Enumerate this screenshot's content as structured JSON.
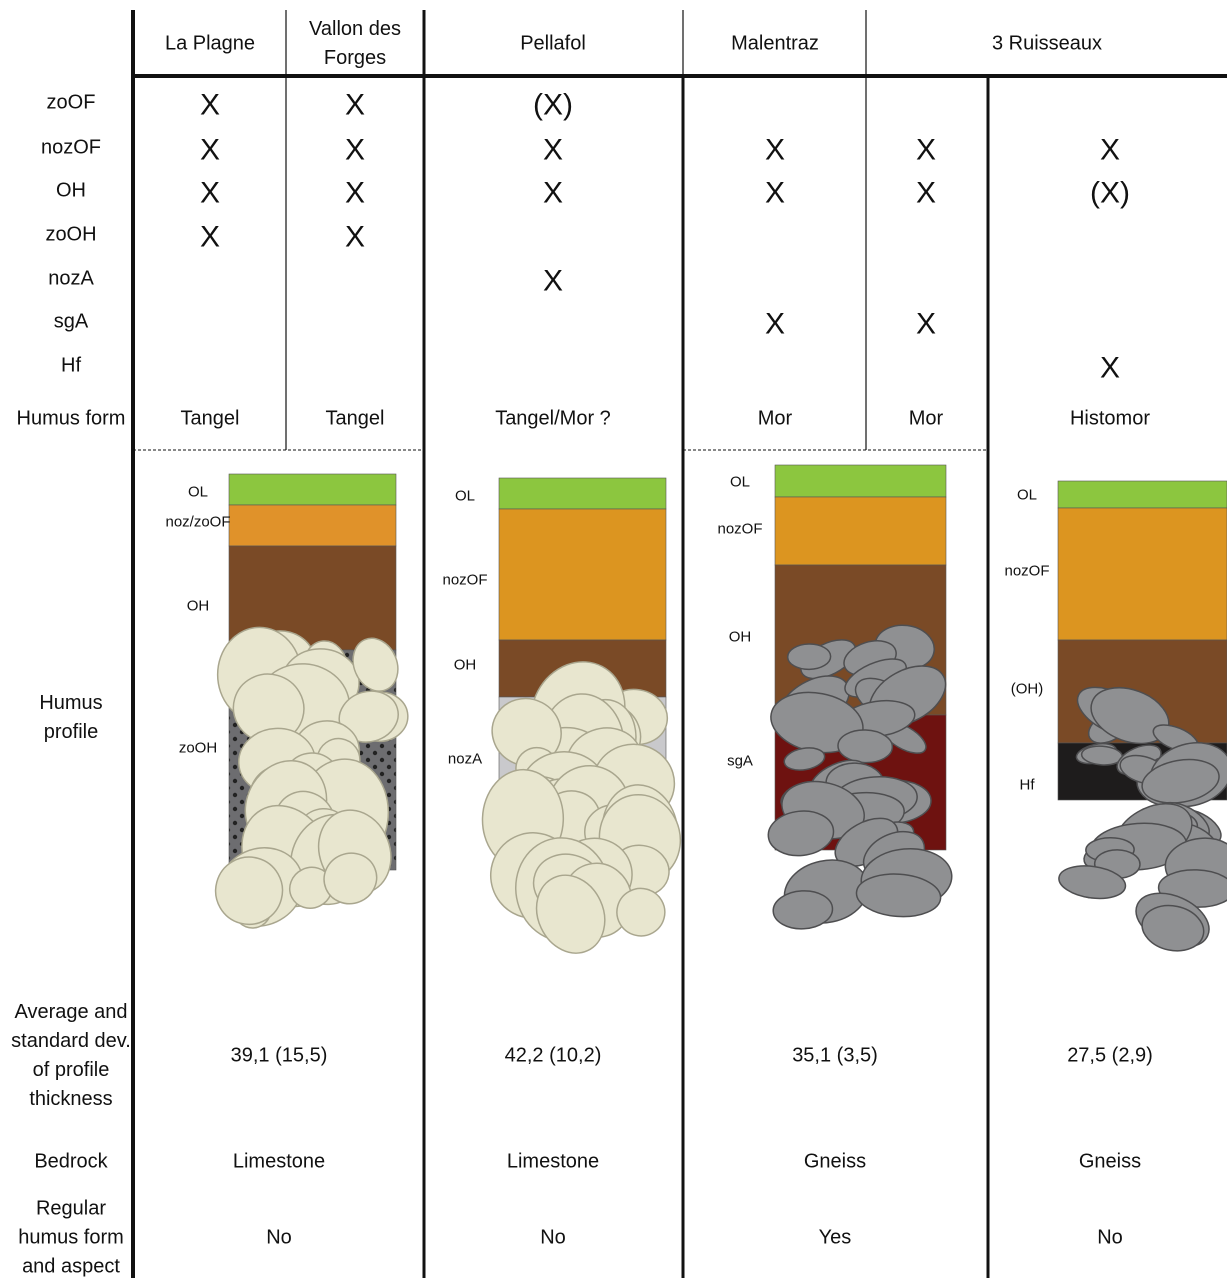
{
  "header": {
    "sites": [
      "La Plagne",
      "Vallon des Forges",
      "Pellafol",
      "Malentraz",
      "3 Ruisseaux"
    ]
  },
  "presence": {
    "rows": [
      {
        "label": "zoOF",
        "cells": [
          "X",
          "X",
          "(X)",
          null,
          null,
          null
        ]
      },
      {
        "label": "nozOF",
        "cells": [
          "X",
          "X",
          "X",
          "X",
          "X",
          "X"
        ]
      },
      {
        "label": "OH",
        "cells": [
          "X",
          "X",
          "X",
          "X",
          "X",
          "(X)"
        ]
      },
      {
        "label": "zoOH",
        "cells": [
          "X",
          "X",
          null,
          null,
          null,
          null
        ]
      },
      {
        "label": "nozA",
        "cells": [
          null,
          null,
          "X",
          null,
          null,
          null
        ]
      },
      {
        "label": "sgA",
        "cells": [
          null,
          null,
          null,
          "X",
          "X",
          null
        ]
      },
      {
        "label": "Hf",
        "cells": [
          null,
          null,
          null,
          null,
          null,
          "X"
        ]
      }
    ]
  },
  "humus_form": {
    "label": "Humus form",
    "values": [
      "Tangel",
      "Tangel",
      "Tangel/Mor ?",
      "Mor",
      "Mor",
      "Histomor"
    ]
  },
  "humus_profile": {
    "label": "Humus profile",
    "profiles": [
      {
        "layers": [
          "OL",
          "noz/zoOF",
          "OH",
          "zoOH"
        ]
      },
      {
        "layers": [
          "OL",
          "nozOF",
          "OH",
          "nozA"
        ]
      },
      {
        "layers": [
          "OL",
          "nozOF",
          "OH",
          "sgA"
        ]
      },
      {
        "layers": [
          "OL",
          "nozOF",
          "(OH)",
          "Hf"
        ]
      }
    ]
  },
  "thickness": {
    "label": "Average and standard dev. of profile thickness",
    "values": [
      "39,1 (15,5)",
      "42,2 (10,2)",
      "35,1 (3,5)",
      "27,5 (2,9)"
    ]
  },
  "bedrock": {
    "label": "Bedrock",
    "values": [
      "Limestone",
      "Limestone",
      "Gneiss",
      "Gneiss"
    ]
  },
  "regular": {
    "label": "Regular humus form and aspect",
    "values": [
      "No",
      "No",
      "Yes",
      "No"
    ]
  }
}
